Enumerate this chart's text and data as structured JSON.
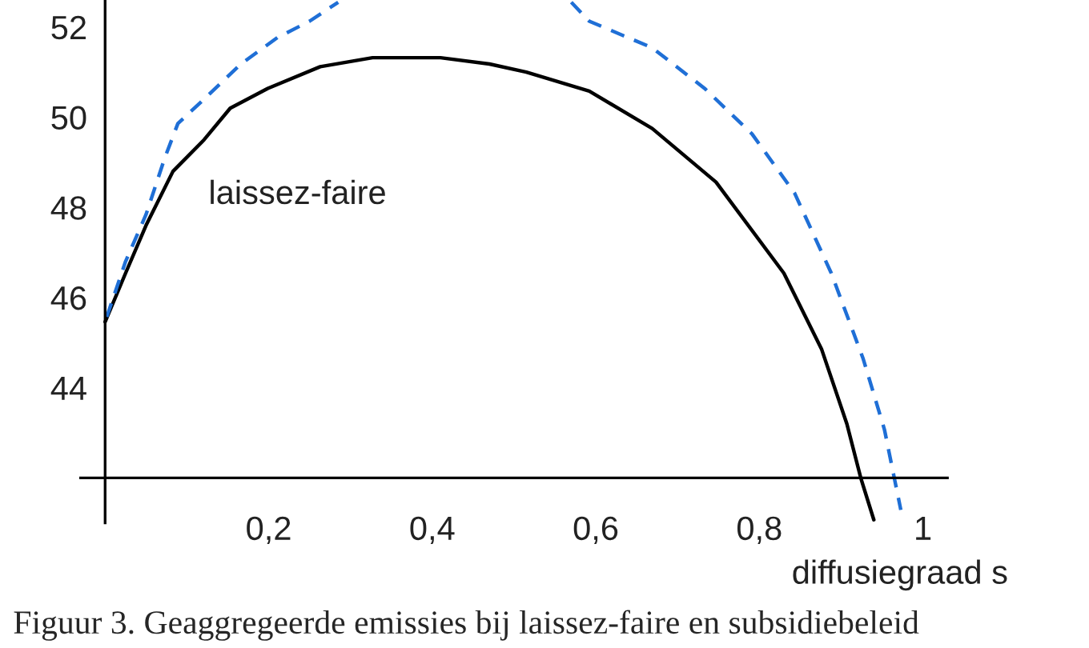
{
  "chart_data": {
    "type": "line",
    "xlabel": "diffusiegraad s",
    "annotations": [
      "Figuur 3. Geaggregeerde emissies bij laissez-faire en subsidiebeleid"
    ],
    "series": [
      {
        "name": "laissez-faire",
        "color": "#000000",
        "line_style": "solid",
        "x": [
          0,
          0.025,
          0.05,
          0.083,
          0.121,
          0.153,
          0.199,
          0.263,
          0.327,
          0.41,
          0.47,
          0.515,
          0.592,
          0.669,
          0.747,
          0.83,
          0.876,
          0.907,
          0.924,
          0.94
        ],
        "values": [
          45.46,
          46.54,
          47.6,
          48.8,
          49.5,
          50.2,
          50.64,
          51.12,
          51.32,
          51.32,
          51.18,
          51.0,
          50.58,
          49.75,
          48.56,
          46.54,
          44.86,
          43.2,
          42.0,
          41.07
        ]
      },
      {
        "color": "#1f6fd6",
        "line_style": "dashed",
        "x": [
          0.002,
          0.025,
          0.05,
          0.073,
          0.089,
          0.121,
          0.166,
          0.211,
          0.25,
          0.285,
          0.43,
          0.57,
          0.592,
          0.669,
          0.733,
          0.791,
          0.843,
          0.888,
          0.927,
          0.953,
          0.965,
          0.973
        ],
        "values": [
          45.57,
          46.8,
          47.84,
          49.1,
          49.86,
          50.4,
          51.18,
          51.77,
          52.13,
          52.55,
          null,
          52.55,
          52.13,
          51.54,
          50.64,
          49.63,
          48.32,
          46.54,
          44.64,
          43.07,
          42.0,
          41.29
        ]
      }
    ],
    "xlim": [
      -0.03,
      1.03
    ],
    "ylim": [
      41,
      52.6
    ],
    "xticks": [
      {
        "value": 0,
        "label": null
      },
      {
        "value": 0.2,
        "label": "0,2"
      },
      {
        "value": 0.4,
        "label": "0,4"
      },
      {
        "value": 0.6,
        "label": "0,6"
      },
      {
        "value": 0.8,
        "label": "0,8"
      },
      {
        "value": 1,
        "label": "1"
      }
    ],
    "yticks": [
      44,
      46,
      48,
      50,
      52
    ],
    "grid": false,
    "legend": false
  }
}
